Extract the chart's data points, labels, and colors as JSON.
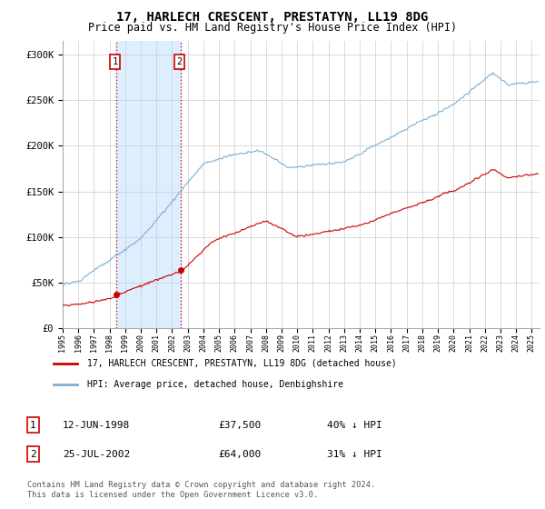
{
  "title": "17, HARLECH CRESCENT, PRESTATYN, LL19 8DG",
  "subtitle": "Price paid vs. HM Land Registry's House Price Index (HPI)",
  "title_fontsize": 10,
  "subtitle_fontsize": 8.5,
  "bg_color": "#ffffff",
  "grid_color": "#cccccc",
  "hpi_color": "#7bafd4",
  "price_color": "#cc0000",
  "sale1_date_num": 1998.45,
  "sale1_price": 37500,
  "sale2_date_num": 2002.57,
  "sale2_price": 64000,
  "shade_color": "#ddeeff",
  "vline_color": "#cc0000",
  "ytick_labels": [
    "£0",
    "£50K",
    "£100K",
    "£150K",
    "£200K",
    "£250K",
    "£300K"
  ],
  "ytick_values": [
    0,
    50000,
    100000,
    150000,
    200000,
    250000,
    300000
  ],
  "ylim": [
    0,
    315000
  ],
  "xlim_start": 1995.0,
  "xlim_end": 2025.5,
  "legend_entry1": "17, HARLECH CRESCENT, PRESTATYN, LL19 8DG (detached house)",
  "legend_entry2": "HPI: Average price, detached house, Denbighshire",
  "sale1_date_str": "12-JUN-1998",
  "sale1_price_str": "£37,500",
  "sale1_pct_str": "40% ↓ HPI",
  "sale2_date_str": "25-JUL-2002",
  "sale2_price_str": "£64,000",
  "sale2_pct_str": "31% ↓ HPI",
  "footer": "Contains HM Land Registry data © Crown copyright and database right 2024.\nThis data is licensed under the Open Government Licence v3.0."
}
